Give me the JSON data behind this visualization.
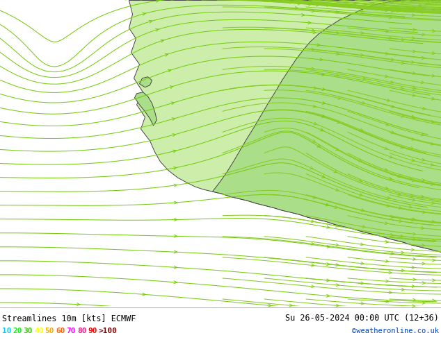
{
  "title_left": "Streamlines 10m [kts] ECMWF",
  "title_right": "Su 26-05-2024 00:00 UTC (12+36)",
  "credit": "©weatheronline.co.uk",
  "legend_values": [
    "10",
    "20",
    "30",
    "40",
    "50",
    "60",
    "70",
    "80",
    "90",
    ">100"
  ],
  "legend_colors": [
    "#00ccff",
    "#00ff00",
    "#33cc00",
    "#ffff00",
    "#ffaa00",
    "#ff6600",
    "#ff00ff",
    "#ff1493",
    "#ff0000",
    "#880000"
  ],
  "bg_color": "#d8d8d8",
  "land_color_green": "#aade88",
  "land_color_light": "#cceeaa",
  "text_color": "#000000",
  "fig_width": 6.34,
  "fig_height": 4.9,
  "dpi": 100
}
